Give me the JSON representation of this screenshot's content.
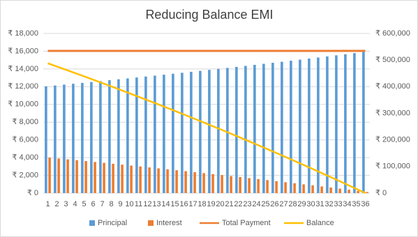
{
  "chart_data": {
    "type": "combo",
    "title": "Reducing Balance EMI",
    "categories": [
      "1",
      "2",
      "3",
      "4",
      "5",
      "6",
      "7",
      "8",
      "9",
      "10",
      "11",
      "12",
      "13",
      "14",
      "15",
      "16",
      "17",
      "18",
      "19",
      "20",
      "21",
      "22",
      "23",
      "24",
      "25",
      "26",
      "27",
      "28",
      "29",
      "30",
      "31",
      "32",
      "33",
      "34",
      "35",
      "36"
    ],
    "series": [
      {
        "name": "Principal",
        "type": "bar",
        "axis": "y",
        "color": "#5b9bd5",
        "values": [
          12038,
          12134,
          12231,
          12329,
          12428,
          12527,
          12627,
          12729,
          12830,
          12933,
          13036,
          13141,
          13246,
          13352,
          13459,
          13566,
          13675,
          13784,
          13895,
          14006,
          14118,
          14231,
          14345,
          14459,
          14575,
          14692,
          14809,
          14928,
          15047,
          15167,
          15289,
          15411,
          15534,
          15659,
          15784,
          15910
        ]
      },
      {
        "name": "Interest",
        "type": "bar",
        "axis": "y",
        "color": "#ed7d31",
        "values": [
          4000,
          3904,
          3807,
          3709,
          3610,
          3511,
          3411,
          3309,
          3208,
          3105,
          3002,
          2897,
          2792,
          2686,
          2579,
          2472,
          2363,
          2254,
          2143,
          2032,
          1920,
          1807,
          1693,
          1579,
          1463,
          1346,
          1229,
          1110,
          991,
          871,
          749,
          627,
          504,
          379,
          254,
          128
        ]
      },
      {
        "name": "Total Payment",
        "type": "line",
        "axis": "y",
        "color": "#ed7d31",
        "values": [
          16038,
          16038,
          16038,
          16038,
          16038,
          16038,
          16038,
          16038,
          16038,
          16038,
          16038,
          16038,
          16038,
          16038,
          16038,
          16038,
          16038,
          16038,
          16038,
          16038,
          16038,
          16038,
          16038,
          16038,
          16038,
          16038,
          16038,
          16038,
          16038,
          16038,
          16038,
          16038,
          16038,
          16038,
          16038,
          16038
        ]
      },
      {
        "name": "Balance",
        "type": "line",
        "axis": "y2",
        "color": "#ffc000",
        "values": [
          487962,
          475828,
          463597,
          451268,
          438840,
          426313,
          413686,
          400957,
          388127,
          375194,
          362158,
          349017,
          335771,
          322419,
          308960,
          295394,
          281719,
          267935,
          254040,
          240034,
          225916,
          211685,
          197340,
          182881,
          168306,
          153614,
          138805,
          123877,
          108830,
          93663,
          78374,
          62963,
          47429,
          31770,
          15986,
          0
        ]
      }
    ],
    "ylim": [
      0,
      18000
    ],
    "yticks": [
      {
        "value": 0,
        "label": "₹ 0"
      },
      {
        "value": 2000,
        "label": "₹ 2,000"
      },
      {
        "value": 4000,
        "label": "₹ 4,000"
      },
      {
        "value": 6000,
        "label": "₹ 6,000"
      },
      {
        "value": 8000,
        "label": "₹ 8,000"
      },
      {
        "value": 10000,
        "label": "₹ 10,000"
      },
      {
        "value": 12000,
        "label": "₹ 12,000"
      },
      {
        "value": 14000,
        "label": "₹ 14,000"
      },
      {
        "value": 16000,
        "label": "₹ 16,000"
      },
      {
        "value": 18000,
        "label": "₹ 18,000"
      }
    ],
    "y2lim": [
      0,
      600000
    ],
    "y2ticks": [
      {
        "value": 0,
        "label": "₹ 0"
      },
      {
        "value": 100000,
        "label": "₹ 100,000"
      },
      {
        "value": 200000,
        "label": "₹ 200,000"
      },
      {
        "value": 300000,
        "label": "₹ 300,000"
      },
      {
        "value": 400000,
        "label": "₹ 400,000"
      },
      {
        "value": 500000,
        "label": "₹ 500,000"
      },
      {
        "value": 600000,
        "label": "₹ 600,000"
      }
    ],
    "grid": true,
    "legend": "bottom"
  }
}
